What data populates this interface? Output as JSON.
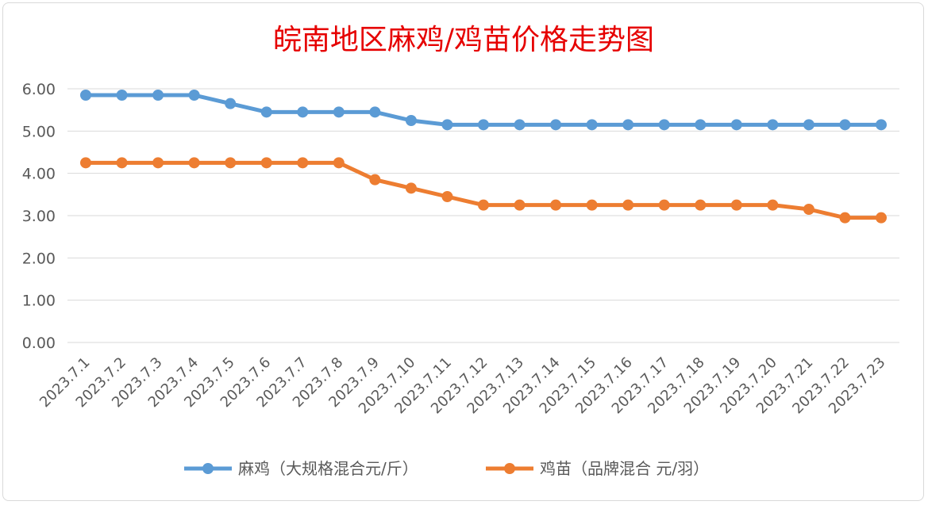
{
  "chart_data": {
    "type": "line",
    "title": "皖南地区麻鸡/鸡苗价格走势图",
    "title_color": "#e60000",
    "xlabel": "",
    "ylabel": "",
    "ylim": [
      0,
      6
    ],
    "yticks": [
      "0.00",
      "1.00",
      "2.00",
      "3.00",
      "4.00",
      "5.00",
      "6.00"
    ],
    "grid": true,
    "legend_position": "bottom",
    "categories": [
      "2023.7.1",
      "2023.7.2",
      "2023.7.3",
      "2023.7.4",
      "2023.7.5",
      "2023.7.6",
      "2023.7.7",
      "2023.7.8",
      "2023.7.9",
      "2023.7.10",
      "2023.7.11",
      "2023.7.12",
      "2023.7.13",
      "2023.7.14",
      "2023.7.15",
      "2023.7.16",
      "2023.7.17",
      "2023.7.18",
      "2023.7.19",
      "2023.7.20",
      "2023.7.21",
      "2023.7.22",
      "2023.7.23"
    ],
    "series": [
      {
        "name": "麻鸡（大规格混合元/斤）",
        "color": "#5b9bd5",
        "values": [
          5.85,
          5.85,
          5.85,
          5.85,
          5.65,
          5.45,
          5.45,
          5.45,
          5.45,
          5.25,
          5.15,
          5.15,
          5.15,
          5.15,
          5.15,
          5.15,
          5.15,
          5.15,
          5.15,
          5.15,
          5.15,
          5.15,
          5.15
        ]
      },
      {
        "name": "鸡苗（品牌混合 元/羽）",
        "color": "#ed7d31",
        "values": [
          4.25,
          4.25,
          4.25,
          4.25,
          4.25,
          4.25,
          4.25,
          4.25,
          3.85,
          3.65,
          3.45,
          3.25,
          3.25,
          3.25,
          3.25,
          3.25,
          3.25,
          3.25,
          3.25,
          3.25,
          3.15,
          2.95,
          2.95
        ]
      }
    ]
  }
}
